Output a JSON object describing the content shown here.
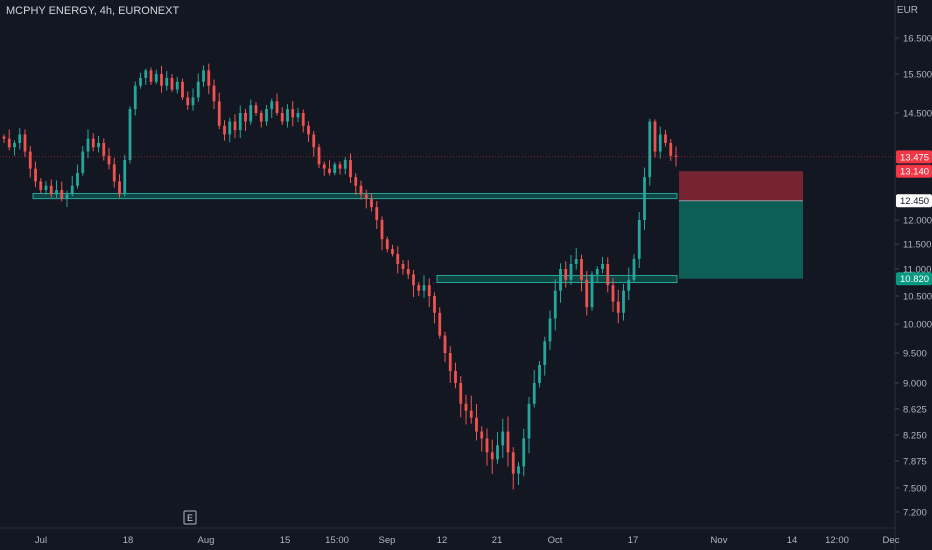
{
  "header": {
    "ticker": "MCPHY ENERGY, 4h, EURONEXT",
    "currency": "EUR"
  },
  "chart_data": {
    "type": "candlestick",
    "ylim": [
      7.0,
      17.0
    ],
    "ticks": [
      16.5,
      15.5,
      14.5,
      12.0,
      11.5,
      11.0,
      10.5,
      10.0,
      9.5,
      9.0,
      8.625,
      8.25,
      7.875,
      7.5,
      7.2
    ],
    "tick_labels": [
      "16.500",
      "15.500",
      "14.500",
      "12.000",
      "11.500",
      "11.000",
      "10.500",
      "10.000",
      "9.500",
      "9.000",
      "8.625",
      "8.250",
      "7.875",
      "7.500",
      "7.200"
    ],
    "x_labels": [
      "Jul",
      "18",
      "Aug",
      "15",
      "15:00",
      "Sep",
      "12",
      "21",
      "Oct",
      "17",
      "Nov",
      "14",
      "12:00",
      "Dec"
    ],
    "price_badges": [
      {
        "label": "13.475",
        "value": 13.475,
        "color": "#f23645",
        "text_color": "#ffffff"
      },
      {
        "label": "13.140",
        "value": 13.14,
        "color": "#f23645",
        "text_color": "#ffffff"
      },
      {
        "label": "12.450",
        "value": 12.45,
        "color": "#ffffff",
        "text_color": "#131722"
      },
      {
        "label": "10.820",
        "value": 10.82,
        "color": "#089981",
        "text_color": "#ffffff"
      }
    ],
    "last_price": 13.475,
    "support_zones": [
      {
        "from": 12.5,
        "to": 12.62
      },
      {
        "from": 10.75,
        "to": 10.88
      }
    ],
    "position": {
      "stop": 13.14,
      "entry": 12.45,
      "target": 10.82
    },
    "earnings_marker": "E",
    "closes": [
      13.9,
      13.7,
      13.8,
      14.0,
      13.6,
      13.2,
      12.9,
      12.7,
      12.8,
      12.6,
      12.7,
      12.5,
      12.6,
      12.8,
      13.1,
      13.6,
      13.9,
      13.7,
      13.8,
      13.5,
      13.3,
      12.9,
      12.6,
      13.4,
      14.6,
      15.2,
      15.4,
      15.6,
      15.3,
      15.5,
      15.2,
      15.4,
      15.1,
      15.3,
      14.9,
      14.7,
      14.9,
      15.3,
      15.6,
      15.2,
      14.8,
      14.2,
      14.0,
      14.3,
      14.1,
      14.5,
      14.3,
      14.7,
      14.5,
      14.3,
      14.6,
      14.8,
      14.5,
      14.3,
      14.6,
      14.4,
      14.5,
      14.2,
      14.0,
      13.7,
      13.3,
      13.2,
      13.1,
      13.3,
      13.2,
      13.4,
      13.0,
      12.8,
      12.6,
      12.5,
      12.3,
      12.0,
      11.6,
      11.4,
      11.3,
      11.1,
      11.0,
      10.9,
      10.7,
      10.6,
      10.7,
      10.5,
      10.2,
      9.8,
      9.5,
      9.2,
      9.0,
      8.7,
      8.6,
      8.5,
      8.3,
      8.2,
      8.0,
      7.9,
      8.1,
      8.3,
      8.0,
      7.7,
      7.8,
      8.2,
      8.7,
      9.0,
      9.3,
      9.7,
      10.1,
      10.6,
      11.0,
      10.8,
      11.1,
      11.2,
      10.8,
      10.3,
      10.9,
      11.0,
      11.1,
      10.7,
      10.4,
      10.2,
      10.6,
      10.8,
      11.2,
      12.0,
      13.0,
      14.3,
      13.6,
      14.0,
      13.8,
      13.5,
      13.475
    ]
  }
}
